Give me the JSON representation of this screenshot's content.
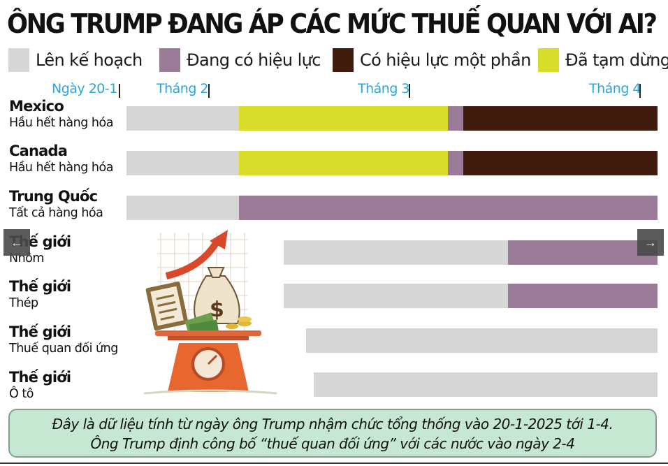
{
  "title": "ÔNG TRUMP ĐANG ÁP CÁC MỨC THUẾ QUAN VỚI AI?",
  "legend": [
    {
      "label": "Lên kế hoạch",
      "color": "#d6d6d6"
    },
    {
      "label": "Đang có hiệu lực",
      "color": "#9a7b98"
    },
    {
      "label": "Có hiệu lực một phần",
      "color": "#3f1c0e"
    },
    {
      "label": "Đã tạm dừng",
      "color": "#d8dc2a"
    }
  ],
  "timeline": [
    {
      "label": "Ngày 20-1"
    },
    {
      "label": "Tháng 2"
    },
    {
      "label": "Tháng 3"
    },
    {
      "label": "Tháng 4"
    }
  ],
  "chart_data": {
    "type": "bar",
    "orientation": "horizontal",
    "x_axis": "time",
    "x_range": [
      "2025-01-20",
      "2025-04-01"
    ],
    "rows": [
      {
        "name": "Mexico",
        "sub": "Hầu hết hàng hóa",
        "segments": [
          {
            "status": "Lên kế hoạch",
            "start": "2025-01-20",
            "end": "2025-02-04"
          },
          {
            "status": "Đã tạm dừng",
            "start": "2025-02-04",
            "end": "2025-03-04"
          },
          {
            "status": "Đang có hiệu lực",
            "start": "2025-03-04",
            "end": "2025-03-06"
          },
          {
            "status": "Có hiệu lực một phần",
            "start": "2025-03-06",
            "end": "2025-04-01"
          }
        ]
      },
      {
        "name": "Canada",
        "sub": "Hầu hết hàng hóa",
        "segments": [
          {
            "status": "Lên kế hoạch",
            "start": "2025-01-20",
            "end": "2025-02-04"
          },
          {
            "status": "Đã tạm dừng",
            "start": "2025-02-04",
            "end": "2025-03-04"
          },
          {
            "status": "Đang có hiệu lực",
            "start": "2025-03-04",
            "end": "2025-03-06"
          },
          {
            "status": "Có hiệu lực một phần",
            "start": "2025-03-06",
            "end": "2025-04-01"
          }
        ]
      },
      {
        "name": "Trung Quốc",
        "sub": "Tất cả hàng hóa",
        "segments": [
          {
            "status": "Lên kế hoạch",
            "start": "2025-01-20",
            "end": "2025-02-04"
          },
          {
            "status": "Đang có hiệu lực",
            "start": "2025-02-04",
            "end": "2025-04-01"
          }
        ]
      },
      {
        "name": "Thế giới",
        "sub": "Nhôm",
        "segments": [
          {
            "status": "Lên kế hoạch",
            "start": "2025-02-10",
            "end": "2025-03-12"
          },
          {
            "status": "Đang có hiệu lực",
            "start": "2025-03-12",
            "end": "2025-04-01"
          }
        ]
      },
      {
        "name": "Thế giới",
        "sub": "Thép",
        "segments": [
          {
            "status": "Lên kế hoạch",
            "start": "2025-02-10",
            "end": "2025-03-12"
          },
          {
            "status": "Đang có hiệu lực",
            "start": "2025-03-12",
            "end": "2025-04-01"
          }
        ]
      },
      {
        "name": "Thế giới",
        "sub": "Thuế quan đối ứng",
        "segments": [
          {
            "status": "Lên kế hoạch",
            "start": "2025-02-13",
            "end": "2025-04-01"
          }
        ]
      },
      {
        "name": "Thế giới",
        "sub": "Ô tô",
        "segments": [
          {
            "status": "Lên kế hoạch",
            "start": "2025-02-14",
            "end": "2025-04-01"
          }
        ]
      }
    ]
  },
  "note": {
    "line1": "Đây là dữ liệu tính từ ngày ông Trump nhậm chức tổng thống vào 20-1-2025 tới 1-4.",
    "line2": "Ông Trump định công bố “thuế quan đối ứng” với các nước vào ngày 2-4"
  },
  "nav": {
    "prev": "←",
    "next": "→"
  }
}
